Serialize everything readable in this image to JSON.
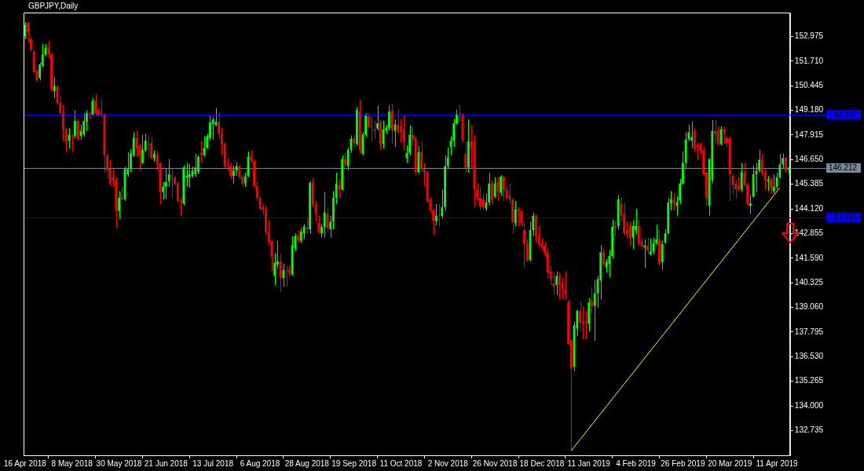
{
  "chart_data": {
    "type": "candlestick",
    "title": "GBPJPY,Daily",
    "categories": [
      "16 Apr 2018",
      null,
      null,
      null,
      null,
      null,
      null,
      null,
      null,
      null,
      null,
      null,
      null,
      null,
      null,
      null,
      "8 May 2018",
      null,
      null,
      null,
      null,
      null,
      null,
      null,
      null,
      null,
      null,
      null,
      null,
      null,
      null,
      null,
      "30 May 2018",
      null,
      null,
      null,
      null,
      null,
      null,
      null,
      null,
      null,
      null,
      null,
      null,
      null,
      null,
      null,
      "21 Jun 2018",
      null,
      null,
      null,
      null,
      null,
      null,
      null,
      null,
      null,
      null,
      null,
      null,
      null,
      null,
      null,
      "13 Jul 2018",
      null,
      null,
      null,
      null,
      null,
      null,
      null,
      null,
      null,
      null,
      null,
      null,
      null,
      null,
      null,
      "6 Aug 2018",
      null,
      null,
      null,
      null,
      null,
      null,
      null,
      null,
      null,
      null,
      null,
      null,
      null,
      null,
      null,
      "28 Aug 2018",
      null,
      null,
      null,
      null,
      null,
      null,
      null,
      null,
      null,
      null,
      null,
      null,
      null,
      null,
      null,
      "19 Sep 2018",
      null,
      null,
      null,
      null,
      null,
      null,
      null,
      null,
      null,
      null,
      null,
      null,
      null,
      null,
      null,
      "11 Oct 2018",
      null,
      null,
      null,
      null,
      null,
      null,
      null,
      null,
      null,
      null,
      null,
      null,
      null,
      null,
      null,
      "2 Nov 2018",
      null,
      null,
      null,
      null,
      null,
      null,
      null,
      null,
      null,
      null,
      null,
      null,
      null,
      null,
      null,
      "26 Nov 2018",
      null,
      null,
      null,
      null,
      null,
      null,
      null,
      null,
      null,
      null,
      null,
      null,
      null,
      null,
      null,
      "18 Dec 2018",
      null,
      null,
      null,
      null,
      null,
      null,
      null,
      null,
      null,
      null,
      null,
      null,
      null,
      null,
      null,
      "11 Jan 2019",
      null,
      null,
      null,
      null,
      null,
      null,
      null,
      null,
      null,
      null,
      null,
      null,
      null,
      null,
      null,
      "4 Feb 2019",
      null,
      null,
      null,
      null,
      null,
      null,
      null,
      null,
      null,
      null,
      null,
      null,
      null,
      null,
      null,
      "26 Feb 2019",
      null,
      null,
      null,
      null,
      null,
      null,
      null,
      null,
      null,
      null,
      null,
      null,
      null,
      null,
      null,
      "20 Mar 2019",
      null,
      null,
      null,
      null,
      null,
      null,
      null,
      null,
      null,
      null,
      null,
      null,
      null,
      null,
      null,
      "11 Apr 2019",
      null,
      null,
      null,
      null
    ],
    "ohlc": [
      [
        152.99,
        153.73,
        152.83,
        153.58
      ],
      [
        153.65,
        153.73,
        152.67,
        153.18
      ],
      [
        152.87,
        152.95,
        152.2,
        152.28
      ],
      [
        152.2,
        152.28,
        151.07,
        151.14
      ],
      [
        151.22,
        151.3,
        150.64,
        150.71
      ],
      [
        150.83,
        151.65,
        150.71,
        151.54
      ],
      [
        151.46,
        152.6,
        151.38,
        152.05
      ],
      [
        152.05,
        152.6,
        151.97,
        152.4
      ],
      [
        152.4,
        152.75,
        151.89,
        152.05
      ],
      [
        152.05,
        152.12,
        150.16,
        150.24
      ],
      [
        150.16,
        150.87,
        149.81,
        150.44
      ],
      [
        150.4,
        150.48,
        149.46,
        149.54
      ],
      [
        149.58,
        149.93,
        148.95,
        149.03
      ],
      [
        149.03,
        149.46,
        147.62,
        148.2
      ],
      [
        148.2,
        148.28,
        147.07,
        147.54
      ],
      [
        147.62,
        148.28,
        147.22,
        147.93
      ],
      [
        147.87,
        147.97,
        147.07,
        147.85
      ],
      [
        147.85,
        149.18,
        147.73,
        148.64
      ],
      [
        148.64,
        148.75,
        147.58,
        147.69
      ],
      [
        147.85,
        148.44,
        147.66,
        148.13
      ],
      [
        147.93,
        149.03,
        147.81,
        148.64
      ],
      [
        148.6,
        149.18,
        148.13,
        149.03
      ],
      [
        148.99,
        149.1,
        148.75,
        148.95
      ],
      [
        148.95,
        149.81,
        148.91,
        149.66
      ],
      [
        149.66,
        150.01,
        148.87,
        149.03
      ],
      [
        149.22,
        149.3,
        148.83,
        148.95
      ],
      [
        149.03,
        149.73,
        148.83,
        148.99
      ],
      [
        148.95,
        149.03,
        145.97,
        146.87
      ],
      [
        146.87,
        146.95,
        145.66,
        146.09
      ],
      [
        146.17,
        146.64,
        145.3,
        145.42
      ],
      [
        145.74,
        146.17,
        145.26,
        145.58
      ],
      [
        145.62,
        145.74,
        143.15,
        144.01
      ],
      [
        144.01,
        145.03,
        143.58,
        144.68
      ],
      [
        144.68,
        145.26,
        144.56,
        144.6
      ],
      [
        144.6,
        146.28,
        144.52,
        146.17
      ],
      [
        145.89,
        147.03,
        145.77,
        146.17
      ],
      [
        146.17,
        147.19,
        146.01,
        146.95
      ],
      [
        146.87,
        148.05,
        146.79,
        147.77
      ],
      [
        147.77,
        148.13,
        146.79,
        147.22
      ],
      [
        147.38,
        147.46,
        146.09,
        146.87
      ],
      [
        146.48,
        147.93,
        146.4,
        147.15
      ],
      [
        147.11,
        147.97,
        147.03,
        147.62
      ],
      [
        147.42,
        147.85,
        146.79,
        147.38
      ],
      [
        147.5,
        147.81,
        146.64,
        146.72
      ],
      [
        146.72,
        147.11,
        146.56,
        146.95
      ],
      [
        146.87,
        147.07,
        146.09,
        146.4
      ],
      [
        146.48,
        146.52,
        144.36,
        144.99
      ],
      [
        144.99,
        145.5,
        144.6,
        145.26
      ],
      [
        145.26,
        146.17,
        144.6,
        145.5
      ],
      [
        145.54,
        146.68,
        145.26,
        145.89
      ],
      [
        145.74,
        146.17,
        144.68,
        145.7
      ],
      [
        145.74,
        145.81,
        145.3,
        145.42
      ],
      [
        145.42,
        145.5,
        144.44,
        144.52
      ],
      [
        144.56,
        144.68,
        143.77,
        144.52
      ],
      [
        144.4,
        146.36,
        144.32,
        146.25
      ],
      [
        145.74,
        146.48,
        145.26,
        145.81
      ],
      [
        145.74,
        146.4,
        145.19,
        145.89
      ],
      [
        145.81,
        146.28,
        145.7,
        146.09
      ],
      [
        145.89,
        146.95,
        145.74,
        146.25
      ],
      [
        146.01,
        146.87,
        145.93,
        146.79
      ],
      [
        146.99,
        147.62,
        146.48,
        146.87
      ],
      [
        146.87,
        147.85,
        146.79,
        147.26
      ],
      [
        147.26,
        147.97,
        147.19,
        147.85
      ],
      [
        147.77,
        148.91,
        147.62,
        148.56
      ],
      [
        148.48,
        148.83,
        147.66,
        148.71
      ],
      [
        148.4,
        149.3,
        148.36,
        148.6
      ],
      [
        148.6,
        149.07,
        147.69,
        147.97
      ],
      [
        147.97,
        148.28,
        146.87,
        147.42
      ],
      [
        147.46,
        147.54,
        146.21,
        146.32
      ],
      [
        146.36,
        146.72,
        146.09,
        146.32
      ],
      [
        146.32,
        146.48,
        145.66,
        145.81
      ],
      [
        145.81,
        146.32,
        145.42,
        146.09
      ],
      [
        146.09,
        146.52,
        145.81,
        146.32
      ],
      [
        146.32,
        146.4,
        145.62,
        145.74
      ],
      [
        145.77,
        145.89,
        145.26,
        145.42
      ],
      [
        145.42,
        145.97,
        145.26,
        145.77
      ],
      [
        145.81,
        147.07,
        145.74,
        146.79
      ],
      [
        146.79,
        147.15,
        146.48,
        146.6
      ],
      [
        146.56,
        146.64,
        145.23,
        145.3
      ],
      [
        145.3,
        145.5,
        144.52,
        144.68
      ],
      [
        144.68,
        144.76,
        144.01,
        144.13
      ],
      [
        144.2,
        144.36,
        143.81,
        144.05
      ],
      [
        144.09,
        144.28,
        142.8,
        142.95
      ],
      [
        142.95,
        143.54,
        142.25,
        142.4
      ],
      [
        142.48,
        142.56,
        140.91,
        141.66
      ],
      [
        140.68,
        141.85,
        140.21,
        141.35
      ],
      [
        141.27,
        142.48,
        141.07,
        141.42
      ],
      [
        141.42,
        141.81,
        139.86,
        140.6
      ],
      [
        140.56,
        141.3,
        140.13,
        140.99
      ],
      [
        140.95,
        141.19,
        140.13,
        140.91
      ],
      [
        140.99,
        141.23,
        140.68,
        140.83
      ],
      [
        140.76,
        142.72,
        140.68,
        142.25
      ],
      [
        142.09,
        142.87,
        141.93,
        142.72
      ],
      [
        142.72,
        143.03,
        142.4,
        142.48
      ],
      [
        142.48,
        143.15,
        142.36,
        142.95
      ],
      [
        142.87,
        143.34,
        142.56,
        143.23
      ],
      [
        143.15,
        143.7,
        142.87,
        143.07
      ],
      [
        143.07,
        145.54,
        142.83,
        145.46
      ],
      [
        145.46,
        145.7,
        144.2,
        144.32
      ],
      [
        144.32,
        144.52,
        143.46,
        143.93
      ],
      [
        143.42,
        143.77,
        142.87,
        142.95
      ],
      [
        142.87,
        143.34,
        142.64,
        143.19
      ],
      [
        143.19,
        144.99,
        142.64,
        143.93
      ],
      [
        143.85,
        144.2,
        142.95,
        143.15
      ],
      [
        143.07,
        143.77,
        142.64,
        143.46
      ],
      [
        143.46,
        145.03,
        143.07,
        144.68
      ],
      [
        144.68,
        145.97,
        144.36,
        145.42
      ],
      [
        145.34,
        145.66,
        144.68,
        145.11
      ],
      [
        145.11,
        146.87,
        145.07,
        146.68
      ],
      [
        146.68,
        146.99,
        146.25,
        146.4
      ],
      [
        146.32,
        147.26,
        146.09,
        147.15
      ],
      [
        147.15,
        147.89,
        146.99,
        147.73
      ],
      [
        147.73,
        147.93,
        147.3,
        147.5
      ],
      [
        147.46,
        149.34,
        147.38,
        149.18
      ],
      [
        149.11,
        149.73,
        146.95,
        147.15
      ],
      [
        146.95,
        148.05,
        146.87,
        147.93
      ],
      [
        147.93,
        149.03,
        147.81,
        148.91
      ],
      [
        148.87,
        149.03,
        148.24,
        148.32
      ],
      [
        148.36,
        148.83,
        147.58,
        148.32
      ],
      [
        148.2,
        148.64,
        147.73,
        148.13
      ],
      [
        148.24,
        149.42,
        148.13,
        148.52
      ],
      [
        148.56,
        148.67,
        147.15,
        147.46
      ],
      [
        147.46,
        148.64,
        147.22,
        148.2
      ],
      [
        148.13,
        148.44,
        147.97,
        148.28
      ],
      [
        148.28,
        149.42,
        148.13,
        149.11
      ],
      [
        149.18,
        149.5,
        147.46,
        148.17
      ],
      [
        148.13,
        148.71,
        147.3,
        148.44
      ],
      [
        148.44,
        149.26,
        147.97,
        148.05
      ],
      [
        148.36,
        148.75,
        147.54,
        148.05
      ],
      [
        148.24,
        148.95,
        147.15,
        147.58
      ],
      [
        146.72,
        147.38,
        146.48,
        146.99
      ],
      [
        146.99,
        148.4,
        146.87,
        147.93
      ],
      [
        147.93,
        148.28,
        147.38,
        147.69
      ],
      [
        147.73,
        147.85,
        145.81,
        146.01
      ],
      [
        146.01,
        147.34,
        145.89,
        147.03
      ],
      [
        147.07,
        147.58,
        146.01,
        146.17
      ],
      [
        146.17,
        146.48,
        145.26,
        145.97
      ],
      [
        145.97,
        146.09,
        144.44,
        144.52
      ],
      [
        144.6,
        144.72,
        143.93,
        144.05
      ],
      [
        144.05,
        144.13,
        142.8,
        143.5
      ],
      [
        143.5,
        144.36,
        143.27,
        143.77
      ],
      [
        143.81,
        144.36,
        143.15,
        143.77
      ],
      [
        143.74,
        145.11,
        143.58,
        144.21
      ],
      [
        144.21,
        146.87,
        144.01,
        146.32
      ],
      [
        146.32,
        147.26,
        146.17,
        146.75
      ],
      [
        147.3,
        147.85,
        146.87,
        147.62
      ],
      [
        147.62,
        148.75,
        147.3,
        148.52
      ],
      [
        148.52,
        149.22,
        148.44,
        148.95
      ],
      [
        148.99,
        149.46,
        148.6,
        148.95
      ],
      [
        148.95,
        149.03,
        147.5,
        147.66
      ],
      [
        146.95,
        147.58,
        146.01,
        146.25
      ],
      [
        146.25,
        148.71,
        145.97,
        147.58
      ],
      [
        147.58,
        148.44,
        146.25,
        147.22
      ],
      [
        147.58,
        147.93,
        144.21,
        145.11
      ],
      [
        145.11,
        145.42,
        144.56,
        144.68
      ],
      [
        144.68,
        145.26,
        144.05,
        144.25
      ],
      [
        144.6,
        144.91,
        144.05,
        144.21
      ],
      [
        144.13,
        144.91,
        144.01,
        144.44
      ],
      [
        144.44,
        145.97,
        144.28,
        145.42
      ],
      [
        145.42,
        145.58,
        144.36,
        144.56
      ],
      [
        144.76,
        145.74,
        144.68,
        145.42
      ],
      [
        145.5,
        145.74,
        144.52,
        144.99
      ],
      [
        144.95,
        145.85,
        144.79,
        145.77
      ],
      [
        145.77,
        145.81,
        144.52,
        145.11
      ],
      [
        145.11,
        145.3,
        144.52,
        144.68
      ],
      [
        144.83,
        145.42,
        144.36,
        144.6
      ],
      [
        144.6,
        144.68,
        142.83,
        143.42
      ],
      [
        143.38,
        144.52,
        143.23,
        144.09
      ],
      [
        144.09,
        144.21,
        143.23,
        144.01
      ],
      [
        144.01,
        144.05,
        143.23,
        143.38
      ],
      [
        143.03,
        143.46,
        141.11,
        142.32
      ],
      [
        142.32,
        142.56,
        141.42,
        141.5
      ],
      [
        141.5,
        143.46,
        141.42,
        143.03
      ],
      [
        143.03,
        143.93,
        142.72,
        143.77
      ],
      [
        143.77,
        143.85,
        142.4,
        142.72
      ],
      [
        142.8,
        143.23,
        142.17,
        142.32
      ],
      [
        142.4,
        142.64,
        141.97,
        142.13
      ],
      [
        142.25,
        142.4,
        141.66,
        141.82
      ],
      [
        141.85,
        142.09,
        140.52,
        140.84
      ],
      [
        140.91,
        141.19,
        140.21,
        140.52
      ],
      [
        140.29,
        140.84,
        139.7,
        140.13
      ],
      [
        140.21,
        140.91,
        139.7,
        140.68
      ],
      [
        140.68,
        140.84,
        139.46,
        140.21
      ],
      [
        140.33,
        140.6,
        139.46,
        140.01
      ],
      [
        139.97,
        140.91,
        139.46,
        139.74
      ],
      [
        139.31,
        139.46,
        137.15,
        137.19
      ],
      [
        137.35,
        137.4,
        131.7,
        135.94
      ],
      [
        136.01,
        138.32,
        135.78,
        138.13
      ],
      [
        137.97,
        138.95,
        137.58,
        138.88
      ],
      [
        138.88,
        139.39,
        137.82,
        138.25
      ],
      [
        138.33,
        139.11,
        137.42,
        138.21
      ],
      [
        138.33,
        138.88,
        137.42,
        138.21
      ],
      [
        138.21,
        139.54,
        137.82,
        139.31
      ],
      [
        139.38,
        140.09,
        138.72,
        139.11
      ],
      [
        139.15,
        140.44,
        137.35,
        139.78
      ],
      [
        139.78,
        140.68,
        139.03,
        140.52
      ],
      [
        140.44,
        142.25,
        139.46,
        141.89
      ],
      [
        141.89,
        142.05,
        141.19,
        141.27
      ],
      [
        141.11,
        141.54,
        140.84,
        141.38
      ],
      [
        141.3,
        142.01,
        140.6,
        141.7
      ],
      [
        141.7,
        143.58,
        141.58,
        143.19
      ],
      [
        143.23,
        143.5,
        142.72,
        143.15
      ],
      [
        143.23,
        144.83,
        143.07,
        144.6
      ],
      [
        144.36,
        144.72,
        143.46,
        143.77
      ],
      [
        143.85,
        144.44,
        142.72,
        142.87
      ],
      [
        143.03,
        143.46,
        142.64,
        142.8
      ],
      [
        143.23,
        143.46,
        142.25,
        142.64
      ],
      [
        142.64,
        143.54,
        142.05,
        143.23
      ],
      [
        143.03,
        144.13,
        142.8,
        143.23
      ],
      [
        143.23,
        143.54,
        142.17,
        142.32
      ],
      [
        142.4,
        142.64,
        142.05,
        142.17
      ],
      [
        142.13,
        142.56,
        141.07,
        142.25
      ],
      [
        142.25,
        142.64,
        141.82,
        141.97
      ],
      [
        141.78,
        142.6,
        141.74,
        141.93
      ],
      [
        141.93,
        142.64,
        141.82,
        142.36
      ],
      [
        142.36,
        143.31,
        142.25,
        142.56
      ],
      [
        142.56,
        143.03,
        141.19,
        141.35
      ],
      [
        141.38,
        142.48,
        140.99,
        142.32
      ],
      [
        142.4,
        143.07,
        142.32,
        142.87
      ],
      [
        142.87,
        144.68,
        142.83,
        144.44
      ],
      [
        144.4,
        145.03,
        144.05,
        144.6
      ],
      [
        144.56,
        144.91,
        144.05,
        144.36
      ],
      [
        144.28,
        144.76,
        143.77,
        144.44
      ],
      [
        144.56,
        145.66,
        144.36,
        145.42
      ],
      [
        145.42,
        147.07,
        145.34,
        146.48
      ],
      [
        146.48,
        148.05,
        146.17,
        147.69
      ],
      [
        147.69,
        148.44,
        147.58,
        148.05
      ],
      [
        147.62,
        148.6,
        147.22,
        147.81
      ],
      [
        148.13,
        148.28,
        147.07,
        147.22
      ],
      [
        147.42,
        147.54,
        146.64,
        147.26
      ],
      [
        147.42,
        147.54,
        146.95,
        147.11
      ],
      [
        147.11,
        147.3,
        145.85,
        145.89
      ],
      [
        145.97,
        146.01,
        144.28,
        144.68
      ],
      [
        144.28,
        146.72,
        143.77,
        146.68
      ],
      [
        145.58,
        148.68,
        145.42,
        148.13
      ],
      [
        148.13,
        148.68,
        147.46,
        147.97
      ],
      [
        148.13,
        148.36,
        147.38,
        147.46
      ],
      [
        147.46,
        148.36,
        147.38,
        148.2
      ],
      [
        148.2,
        148.36,
        147.46,
        148.05
      ],
      [
        147.77,
        147.85,
        147.26,
        147.54
      ],
      [
        147.77,
        147.85,
        144.52,
        145.89
      ],
      [
        145.81,
        145.89,
        144.83,
        145.34
      ],
      [
        145.42,
        145.62,
        144.68,
        145.11
      ],
      [
        145.34,
        145.74,
        145.03,
        145.11
      ],
      [
        145.11,
        146.48,
        144.99,
        146.01
      ],
      [
        146.01,
        146.48,
        145.26,
        145.34
      ],
      [
        145.34,
        145.46,
        144.28,
        144.36
      ],
      [
        144.28,
        144.83,
        143.85,
        144.4
      ],
      [
        144.76,
        146.32,
        144.68,
        145.89
      ],
      [
        145.89,
        146.48,
        144.99,
        146.09
      ],
      [
        146.09,
        147.15,
        145.97,
        146.64
      ],
      [
        146.64,
        146.95,
        145.81,
        145.97
      ],
      [
        145.97,
        146.17,
        145.11,
        145.58
      ],
      [
        145.54,
        145.81,
        145.03,
        145.62
      ],
      [
        145.62,
        145.74,
        144.91,
        145.19
      ],
      [
        145.03,
        145.89,
        144.91,
        145.26
      ],
      [
        145.26,
        145.97,
        145.11,
        145.74
      ],
      [
        145.74,
        146.95,
        145.66,
        146.4
      ],
      [
        146.4,
        146.95,
        146.17,
        146.72
      ],
      [
        146.75,
        146.79,
        146.01,
        146.05
      ],
      [
        146.14,
        146.28,
        145.93,
        146.212
      ]
    ],
    "ylim": [
      131.46,
      154.2
    ],
    "yticks": [
      {
        "value": 152.975,
        "label": "152.975"
      },
      {
        "value": 151.71,
        "label": "151.710"
      },
      {
        "value": 150.445,
        "label": "150.445"
      },
      {
        "value": 149.18,
        "label": "149.180"
      },
      {
        "value": 147.915,
        "label": "147.915"
      },
      {
        "value": 146.65,
        "label": "146.650"
      },
      {
        "value": 145.385,
        "label": "145.385"
      },
      {
        "value": 144.12,
        "label": "144.120"
      },
      {
        "value": 142.855,
        "label": "142.855"
      },
      {
        "value": 141.59,
        "label": "141.590"
      },
      {
        "value": 140.325,
        "label": "140.325"
      },
      {
        "value": 139.06,
        "label": "139.060"
      },
      {
        "value": 137.795,
        "label": "137.795"
      },
      {
        "value": 136.53,
        "label": "136.530"
      },
      {
        "value": 135.265,
        "label": "135.265"
      },
      {
        "value": 134,
        "label": "134.000"
      },
      {
        "value": 132.735,
        "label": "132.735"
      }
    ],
    "ref_lines": [
      {
        "axis": "y",
        "value": 148.947,
        "label": "148.947",
        "color": "#0000ff"
      },
      {
        "axis": "y",
        "value": 146.212,
        "label": "146.212",
        "color": "#778899"
      },
      {
        "axis": "y",
        "value": 143.691,
        "label": "143.691",
        "color": "#0000ff"
      }
    ],
    "series": [
      {
        "type": "line",
        "color": "#ffff00",
        "values": [
          null,
          null,
          null,
          null,
          null,
          null,
          null,
          null,
          null,
          null,
          null,
          null,
          null,
          null,
          null,
          null,
          null,
          null,
          null,
          null,
          null,
          null,
          null,
          null,
          null,
          null,
          null,
          null,
          null,
          null,
          null,
          null,
          null,
          null,
          null,
          null,
          null,
          null,
          null,
          null,
          null,
          null,
          null,
          null,
          null,
          null,
          null,
          null,
          null,
          null,
          null,
          null,
          null,
          null,
          null,
          null,
          null,
          null,
          null,
          null,
          null,
          null,
          null,
          null,
          null,
          null,
          null,
          null,
          null,
          null,
          null,
          null,
          null,
          null,
          null,
          null,
          null,
          null,
          null,
          null,
          null,
          null,
          null,
          null,
          null,
          null,
          null,
          null,
          null,
          null,
          null,
          null,
          null,
          null,
          null,
          null,
          null,
          null,
          null,
          null,
          null,
          null,
          null,
          null,
          null,
          null,
          null,
          null,
          null,
          null,
          null,
          null,
          null,
          null,
          null,
          null,
          null,
          null,
          null,
          null,
          null,
          null,
          null,
          null,
          null,
          null,
          null,
          null,
          null,
          null,
          null,
          null,
          null,
          null,
          null,
          null,
          null,
          null,
          null,
          null,
          null,
          null,
          null,
          null,
          null,
          null,
          null,
          null,
          null,
          null,
          null,
          null,
          null,
          null,
          null,
          null,
          null,
          null,
          null,
          null,
          null,
          null,
          null,
          null,
          null,
          null,
          null,
          null,
          null,
          null,
          null,
          null,
          null,
          null,
          null,
          null,
          null,
          null,
          null,
          null,
          null,
          null,
          null,
          null,
          null,
          null,
          131.7,
          null,
          null,
          null,
          null,
          null,
          null,
          null,
          null,
          null,
          null,
          null,
          null,
          null,
          null,
          null,
          null,
          null,
          null,
          null,
          null,
          null,
          null,
          null,
          null,
          null,
          null,
          null,
          null,
          null,
          null,
          null,
          null,
          null,
          null,
          null,
          null,
          null,
          null,
          null,
          null,
          null,
          null,
          null,
          null,
          null,
          null,
          null,
          null,
          null,
          null,
          null,
          null,
          null,
          null,
          null,
          null,
          null,
          null,
          null,
          null,
          null,
          null,
          null,
          null,
          null,
          null,
          null,
          null,
          null,
          null,
          145.2,
          null,
          null,
          null
        ]
      }
    ]
  }
}
